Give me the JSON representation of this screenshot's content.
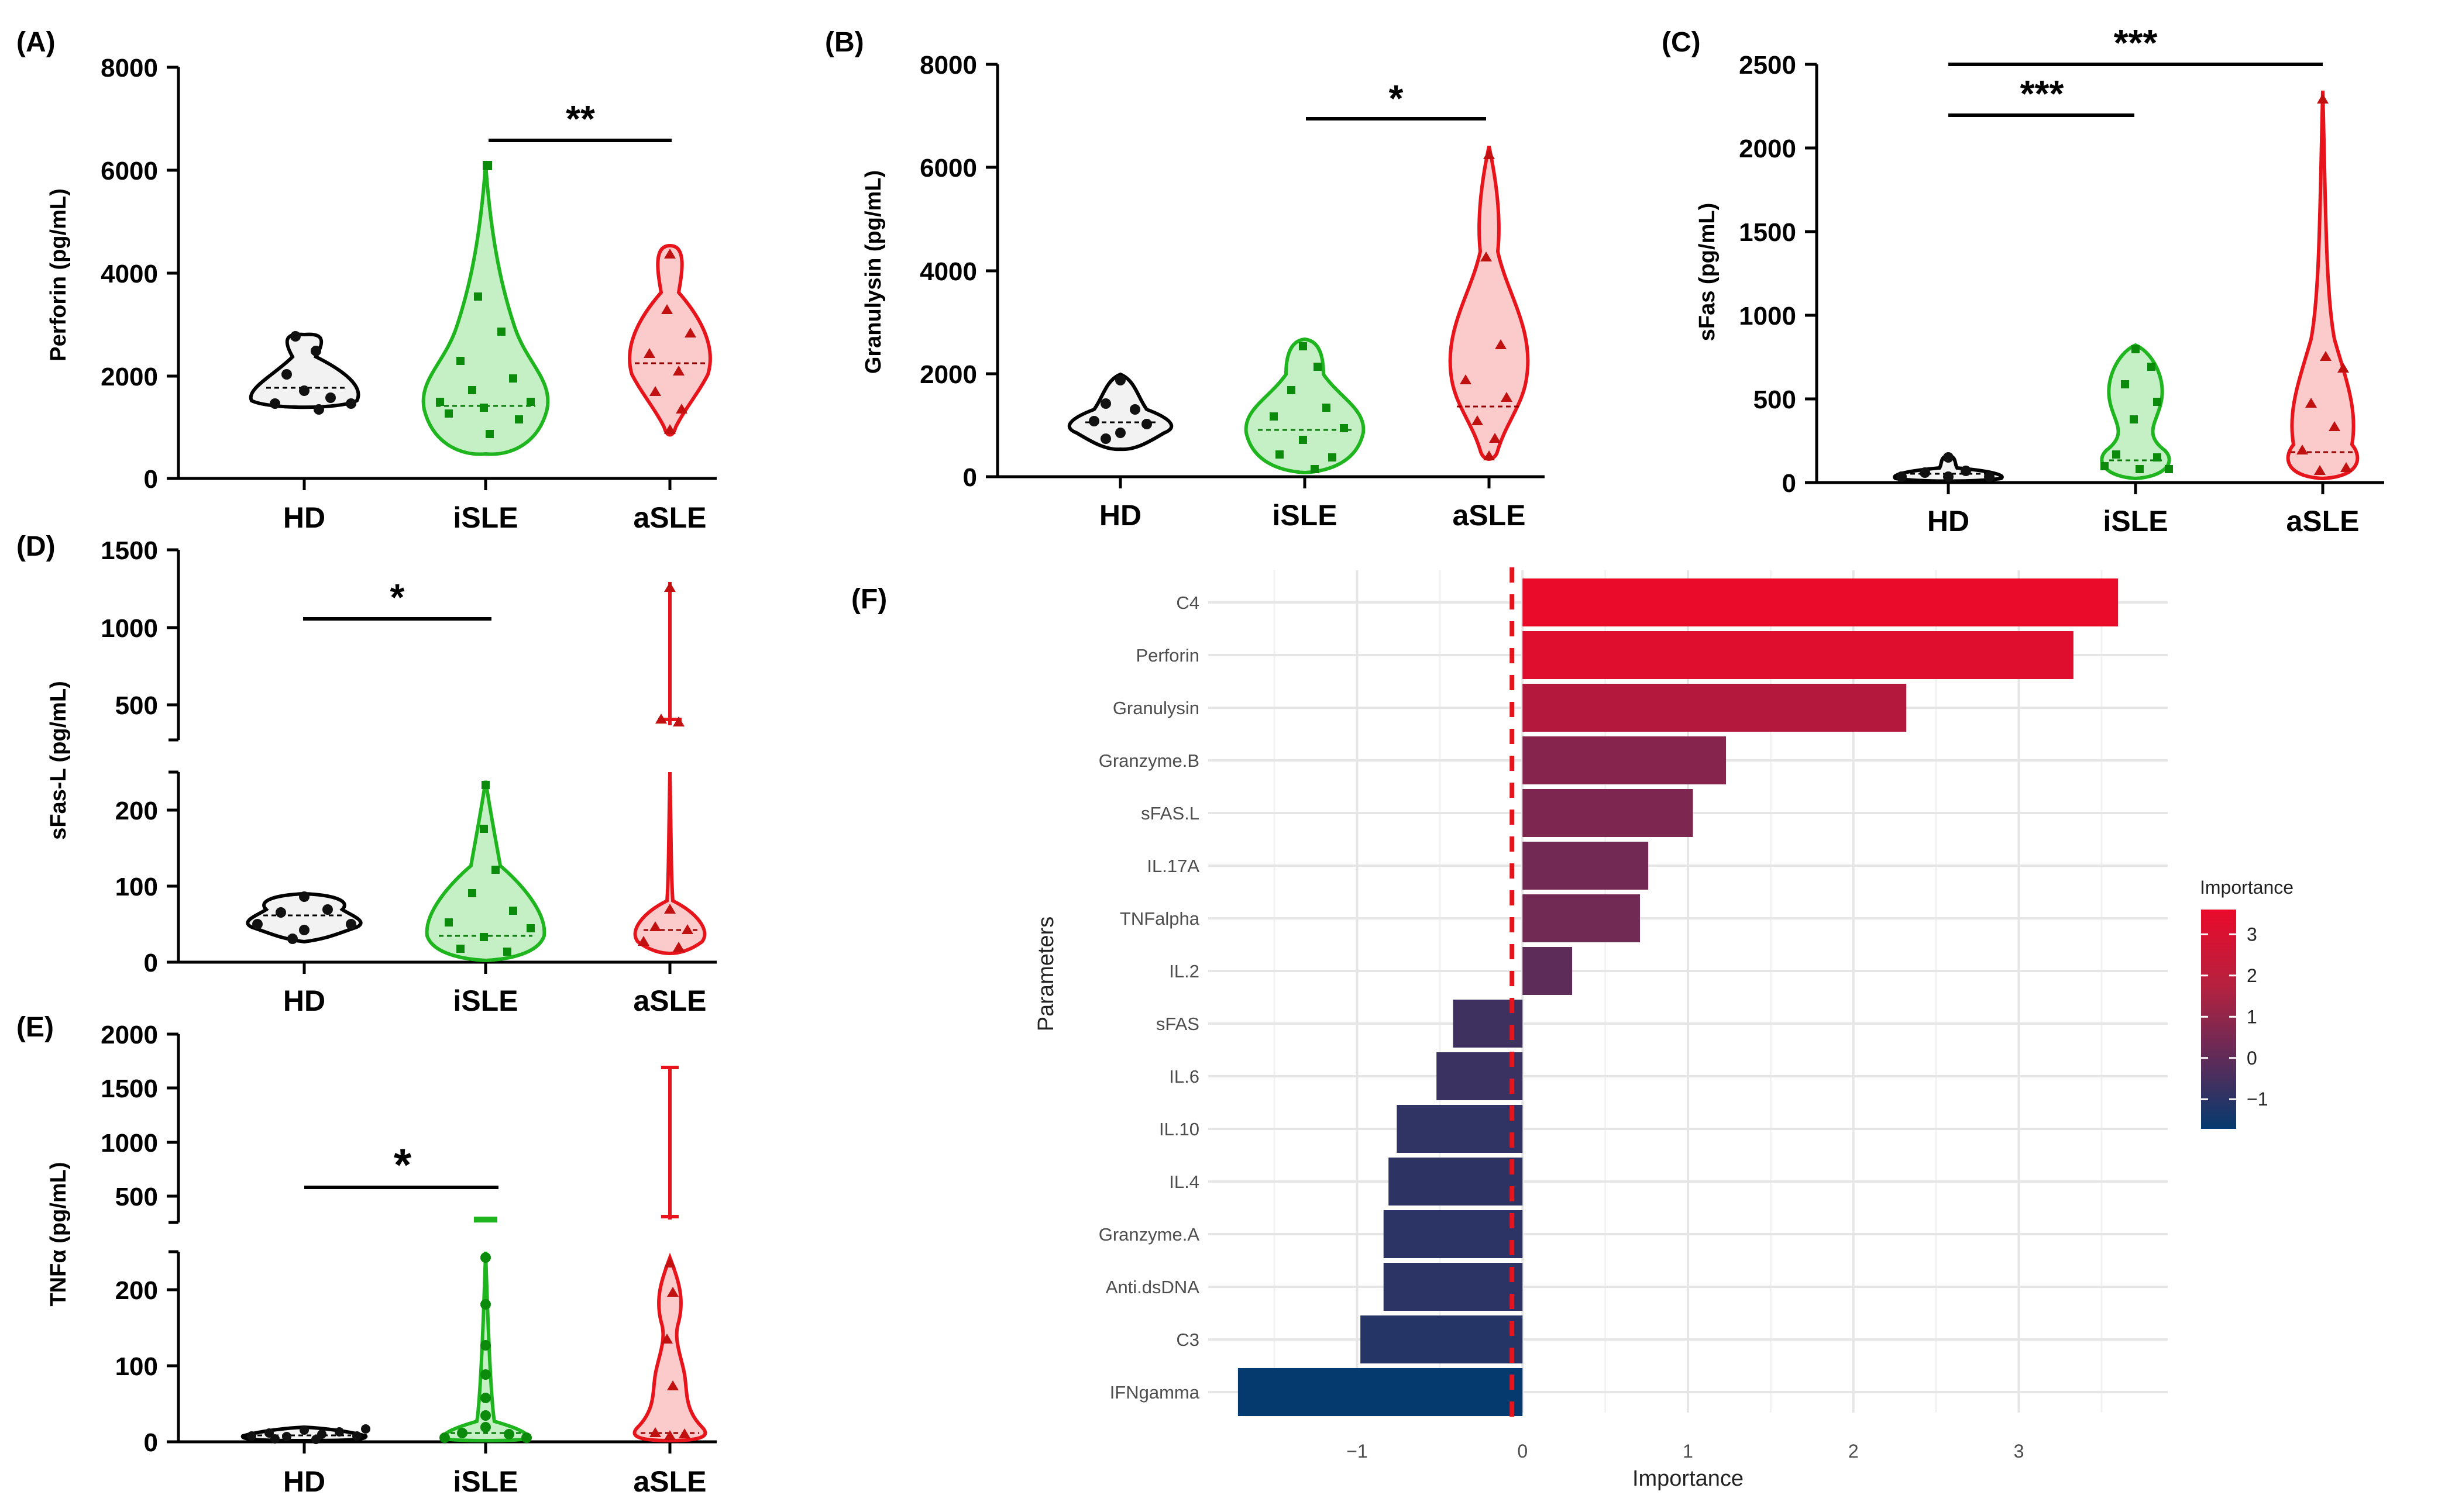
{
  "chart_data": [
    {
      "panel": "(A)",
      "type": "violin",
      "ylabel": "Perforin (pg/mL)",
      "categories": [
        "HD",
        "iSLE",
        "aSLE"
      ],
      "yticks": [
        "0",
        "2000",
        "4000",
        "6000",
        "8000"
      ],
      "ylim": [
        0,
        8000
      ],
      "medians": [
        1700,
        1400,
        2250
      ],
      "maxima": [
        2800,
        6100,
        4500
      ],
      "minima": [
        1400,
        600,
        1050
      ],
      "significance": [
        {
          "from": "iSLE",
          "to": "aSLE",
          "label": "**"
        }
      ]
    },
    {
      "panel": "(B)",
      "type": "violin",
      "ylabel": "Granulysin (pg/mL)",
      "categories": [
        "HD",
        "iSLE",
        "aSLE"
      ],
      "yticks": [
        "0",
        "2000",
        "4000",
        "6000",
        "8000"
      ],
      "ylim": [
        0,
        8000
      ],
      "medians": [
        1050,
        900,
        1350
      ],
      "maxima": [
        1950,
        2650,
        6400
      ],
      "minima": [
        550,
        150,
        350
      ],
      "significance": [
        {
          "from": "iSLE",
          "to": "aSLE",
          "label": "*"
        }
      ]
    },
    {
      "panel": "(C)",
      "type": "violin",
      "ylabel": "sFas (pg/mL)",
      "categories": [
        "HD",
        "iSLE",
        "aSLE"
      ],
      "yticks": [
        "0",
        "500",
        "1000",
        "1500",
        "2000",
        "2500"
      ],
      "ylim": [
        0,
        2500
      ],
      "medians": [
        40,
        130,
        180
      ],
      "maxima": [
        160,
        800,
        2350
      ],
      "minima": [
        5,
        20,
        60
      ],
      "significance": [
        {
          "from": "HD",
          "to": "iSLE",
          "label": "***"
        },
        {
          "from": "HD",
          "to": "aSLE",
          "label": "***"
        }
      ]
    },
    {
      "panel": "(D)",
      "type": "violin",
      "ylabel": "sFas-L (pg/mL)",
      "categories": [
        "HD",
        "iSLE",
        "aSLE"
      ],
      "yticks_upper": [
        "500",
        "1000",
        "1500"
      ],
      "yticks_lower": [
        "0",
        "100",
        "200"
      ],
      "broken_axis": {
        "lower": [
          0,
          250
        ],
        "upper": [
          300,
          1500
        ]
      },
      "medians": [
        62,
        35,
        45
      ],
      "maxima": [
        90,
        230,
        1280
      ],
      "minima": [
        28,
        5,
        25
      ],
      "significance": [
        {
          "from": "HD",
          "to": "iSLE",
          "label": "*"
        }
      ]
    },
    {
      "panel": "(E)",
      "type": "violin",
      "ylabel": "TNFα (pg/mL)",
      "categories": [
        "HD",
        "iSLE",
        "aSLE"
      ],
      "yticks_upper": [
        "500",
        "1000",
        "1500",
        "2000"
      ],
      "yticks_lower": [
        "0",
        "100",
        "200"
      ],
      "broken_axis": {
        "lower": [
          0,
          250
        ],
        "upper": [
          300,
          2000
        ]
      },
      "medians": [
        8,
        12,
        12
      ],
      "maxima": [
        20,
        310,
        1700
      ],
      "minima": [
        0,
        0,
        0
      ],
      "significance": [
        {
          "from": "HD",
          "to": "iSLE",
          "label": "*"
        }
      ]
    },
    {
      "panel": "(F)",
      "type": "bar",
      "orientation": "horizontal",
      "xlabel": "Importance",
      "ylabel": "Parameters",
      "xticks": [
        "−1",
        "0",
        "1",
        "2",
        "3"
      ],
      "xlim": [
        -1.9,
        3.9
      ],
      "categories": [
        "C4",
        "Perforin",
        "Granulysin",
        "Granzyme.B",
        "sFAS.L",
        "IL.17A",
        "TNFalpha",
        "IL.2",
        "sFAS",
        "IL.6",
        "IL.10",
        "IL.4",
        "Granzyme.A",
        "Anti.dsDNA",
        "C3",
        "IFNgamma"
      ],
      "values": [
        3.6,
        3.33,
        2.32,
        1.23,
        1.03,
        0.76,
        0.71,
        0.3,
        -0.42,
        -0.52,
        -0.76,
        -0.81,
        -0.84,
        -0.84,
        -0.98,
        -1.72
      ],
      "legend": {
        "title": "Importance",
        "ticks": [
          "3",
          "2",
          "1",
          "0",
          "−1"
        ],
        "range": [
          -1.72,
          3.6
        ]
      },
      "colors": {
        "high": "#ea0a2a",
        "mid": "#6e2a55",
        "low": "#053a6e"
      }
    }
  ]
}
